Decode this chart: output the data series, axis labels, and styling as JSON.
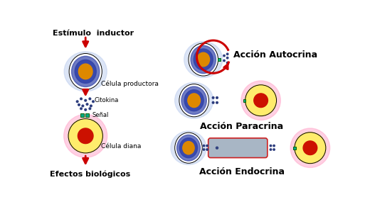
{
  "bg_color": "#ffffff",
  "left_labels": {
    "estimulo": "Estímulo  inductor",
    "celula_productora": "Célula productora",
    "citokina": "Citokina",
    "senal": "Señal",
    "celula_diana": "Célula diana",
    "efectos": "Efectos biológicos"
  },
  "right_labels": {
    "autocrina": "Acción Autocrina",
    "paracrina": "Acción Paracrina",
    "endocrina": "Acción Endocrina"
  },
  "cell_colors": {
    "outer_blue_dark": "#3344aa",
    "outer_blue_light": "#8899dd",
    "halo_light": "#bbccee",
    "inner_white": "#ddeeff",
    "nucleus_orange": "#dd8800",
    "target_outer_pink": "#ffaacc",
    "target_outer_yellow": "#ffee66",
    "target_nucleus_red": "#cc1100",
    "receptor_teal": "#00aa88",
    "dot_color": "#223377",
    "arrow_red": "#cc0000",
    "vessel_fill": "#99aabb",
    "vessel_edge": "#cc0000"
  }
}
